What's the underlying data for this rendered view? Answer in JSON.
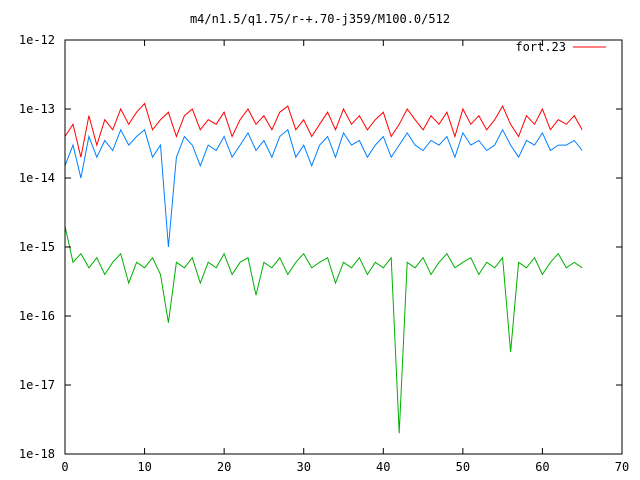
{
  "chart_data": {
    "type": "line",
    "title": "m4/n1.5/q1.75/r-+.70-j359/M100.0/512",
    "xlabel": "",
    "ylabel": "",
    "xlim": [
      0,
      70
    ],
    "ylim": [
      1e-18,
      1e-12
    ],
    "y_scale": "log",
    "x_ticks": [
      0,
      10,
      20,
      30,
      40,
      50,
      60,
      70
    ],
    "x_tick_labels": [
      "0",
      "10",
      "20",
      "30",
      "40",
      "50",
      "60",
      "70"
    ],
    "y_ticks": [
      1e-12,
      1e-13,
      1e-14,
      1e-15,
      1e-16,
      1e-17,
      1e-18
    ],
    "y_tick_labels": [
      "1e-12",
      "1e-13",
      "1e-14",
      "1e-15",
      "1e-16",
      "1e-17",
      "1e-18"
    ],
    "grid": false,
    "legend_position": "top-right",
    "series": [
      {
        "name": "fort.23",
        "color": "#ff0000",
        "x": [
          0,
          1,
          2,
          3,
          4,
          5,
          6,
          7,
          8,
          9,
          10,
          11,
          12,
          13,
          14,
          15,
          16,
          17,
          18,
          19,
          20,
          21,
          22,
          23,
          24,
          25,
          26,
          27,
          28,
          29,
          30,
          31,
          32,
          33,
          34,
          35,
          36,
          37,
          38,
          39,
          40,
          41,
          42,
          43,
          44,
          45,
          46,
          47,
          48,
          49,
          50,
          51,
          52,
          53,
          54,
          55,
          56,
          57,
          58,
          59,
          60,
          61,
          62,
          63,
          64,
          65
        ],
        "y": [
          4e-14,
          6e-14,
          2e-14,
          8e-14,
          3e-14,
          7e-14,
          5e-14,
          1e-13,
          6e-14,
          9e-14,
          1.2e-13,
          5e-14,
          7e-14,
          9e-14,
          4e-14,
          8e-14,
          1e-13,
          5e-14,
          7e-14,
          6e-14,
          9e-14,
          4e-14,
          7e-14,
          1e-13,
          6e-14,
          8e-14,
          5e-14,
          9e-14,
          1.1e-13,
          5e-14,
          7e-14,
          4e-14,
          6e-14,
          9e-14,
          5e-14,
          1e-13,
          6e-14,
          8e-14,
          5e-14,
          7e-14,
          9e-14,
          4e-14,
          6e-14,
          1e-13,
          7e-14,
          5e-14,
          8e-14,
          6e-14,
          9e-14,
          4e-14,
          1e-13,
          6e-14,
          8e-14,
          5e-14,
          7e-14,
          1.1e-13,
          6e-14,
          4e-14,
          8e-14,
          6e-14,
          1e-13,
          5e-14,
          7e-14,
          6e-14,
          8e-14,
          5e-14
        ]
      },
      {
        "color": "#0080ff",
        "x": [
          0,
          1,
          2,
          3,
          4,
          5,
          6,
          7,
          8,
          9,
          10,
          11,
          12,
          13,
          14,
          15,
          16,
          17,
          18,
          19,
          20,
          21,
          22,
          23,
          24,
          25,
          26,
          27,
          28,
          29,
          30,
          31,
          32,
          33,
          34,
          35,
          36,
          37,
          38,
          39,
          40,
          41,
          42,
          43,
          44,
          45,
          46,
          47,
          48,
          49,
          50,
          51,
          52,
          53,
          54,
          55,
          56,
          57,
          58,
          59,
          60,
          61,
          62,
          63,
          64,
          65
        ],
        "y": [
          1.5e-14,
          3e-14,
          1e-14,
          4e-14,
          2e-14,
          3.5e-14,
          2.5e-14,
          5e-14,
          3e-14,
          4e-14,
          5e-14,
          2e-14,
          3e-14,
          1e-15,
          2e-14,
          4e-14,
          3e-14,
          1.5e-14,
          3e-14,
          2.5e-14,
          4e-14,
          2e-14,
          3e-14,
          4.5e-14,
          2.5e-14,
          3.5e-14,
          2e-14,
          4e-14,
          5e-14,
          2e-14,
          3e-14,
          1.5e-14,
          3e-14,
          4e-14,
          2e-14,
          4.5e-14,
          3e-14,
          3.5e-14,
          2e-14,
          3e-14,
          4e-14,
          2e-14,
          3e-14,
          4.5e-14,
          3e-14,
          2.5e-14,
          3.5e-14,
          3e-14,
          4e-14,
          2e-14,
          4.5e-14,
          3e-14,
          3.5e-14,
          2.5e-14,
          3e-14,
          5e-14,
          3e-14,
          2e-14,
          3.5e-14,
          3e-14,
          4.5e-14,
          2.5e-14,
          3e-14,
          3e-14,
          3.5e-14,
          2.5e-14
        ]
      },
      {
        "color": "#00b000",
        "x": [
          0,
          1,
          2,
          3,
          4,
          5,
          6,
          7,
          8,
          9,
          10,
          11,
          12,
          13,
          14,
          15,
          16,
          17,
          18,
          19,
          20,
          21,
          22,
          23,
          24,
          25,
          26,
          27,
          28,
          29,
          30,
          31,
          32,
          33,
          34,
          35,
          36,
          37,
          38,
          39,
          40,
          41,
          42,
          43,
          44,
          45,
          46,
          47,
          48,
          49,
          50,
          51,
          52,
          53,
          54,
          55,
          56,
          57,
          58,
          59,
          60,
          61,
          62,
          63,
          64,
          65
        ],
        "y": [
          2e-15,
          6e-16,
          8e-16,
          5e-16,
          7e-16,
          4e-16,
          6e-16,
          8e-16,
          3e-16,
          6e-16,
          5e-16,
          7e-16,
          4e-16,
          8e-17,
          6e-16,
          5e-16,
          7e-16,
          3e-16,
          6e-16,
          5e-16,
          8e-16,
          4e-16,
          6e-16,
          7e-16,
          2e-16,
          6e-16,
          5e-16,
          7e-16,
          4e-16,
          6e-16,
          8e-16,
          5e-16,
          6e-16,
          7e-16,
          3e-16,
          6e-16,
          5e-16,
          7e-16,
          4e-16,
          6e-16,
          5e-16,
          7e-16,
          2e-18,
          6e-16,
          5e-16,
          7e-16,
          4e-16,
          6e-16,
          8e-16,
          5e-16,
          6e-16,
          7e-16,
          4e-16,
          6e-16,
          5e-16,
          7e-16,
          3e-17,
          6e-16,
          5e-16,
          7e-16,
          4e-16,
          6e-16,
          8e-16,
          5e-16,
          6e-16,
          5e-16
        ]
      }
    ]
  }
}
